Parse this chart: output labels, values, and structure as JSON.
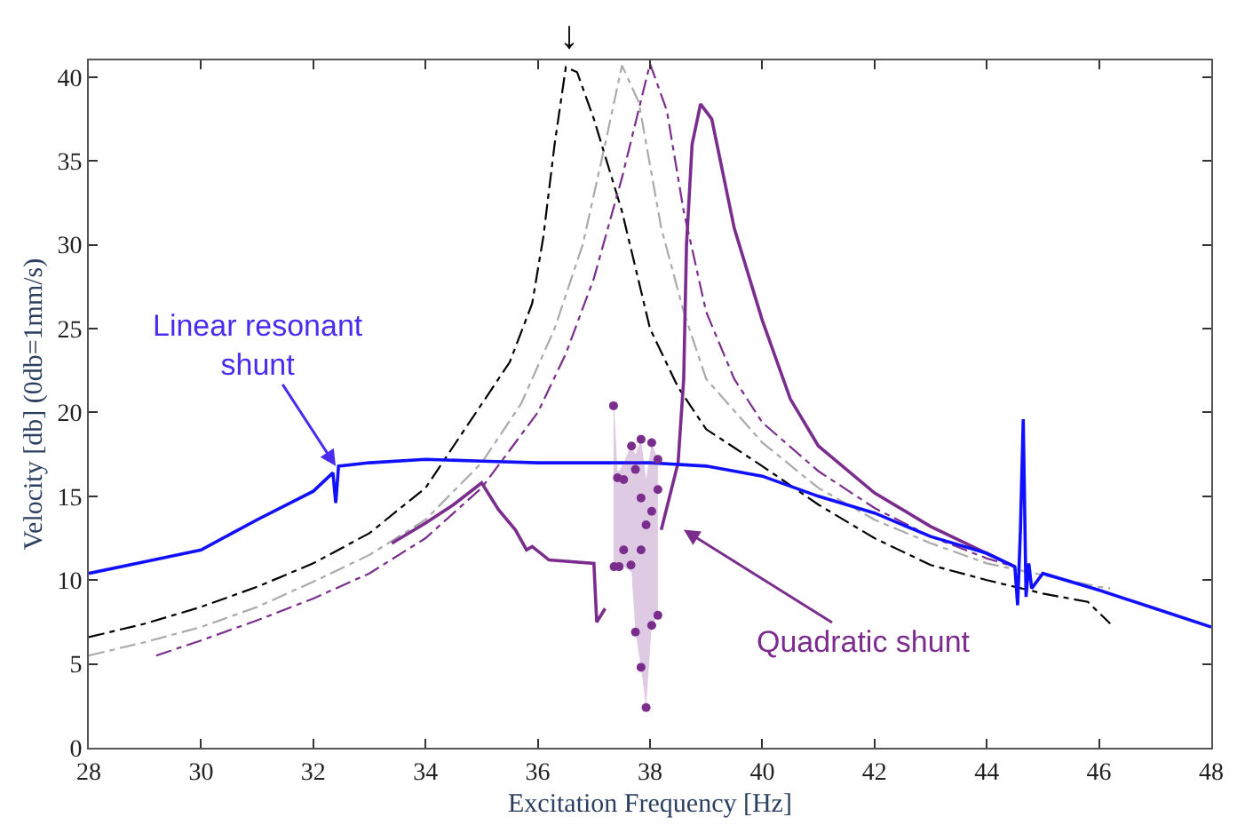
{
  "chart_data": {
    "type": "line",
    "xlabel": "Excitation Frequency [Hz]",
    "ylabel": "Velocity [db] (0db=1mm/s)",
    "xlim": [
      28,
      48
    ],
    "xticks": [
      28,
      30,
      32,
      34,
      36,
      38,
      40,
      42,
      44,
      46,
      48
    ],
    "ylim": [
      0,
      41
    ],
    "yticks": [
      0,
      5,
      10,
      15,
      20,
      25,
      30,
      35,
      40
    ],
    "series": [
      {
        "color": "#000000",
        "line_style": "dashdot",
        "x": [
          28,
          29,
          30,
          31,
          32,
          33,
          34,
          34.6,
          35,
          35.5,
          35.9,
          36.1,
          36.3,
          36.5,
          36.7,
          37,
          37.5,
          38,
          38.5,
          39,
          40,
          41,
          42,
          43,
          44,
          45,
          45.8,
          46.2
        ],
        "values": [
          6.6,
          7.4,
          8.4,
          9.6,
          11,
          12.8,
          15.5,
          18.5,
          20.5,
          23,
          26.5,
          30.5,
          36,
          40.6,
          40.3,
          37.5,
          32,
          25,
          21.5,
          19,
          16.8,
          14.5,
          12.5,
          10.9,
          10,
          9.2,
          8.7,
          7.4
        ]
      },
      {
        "color": "#aaaaaa",
        "line_style": "dashdot",
        "x": [
          28,
          29,
          30,
          31,
          32,
          33,
          34,
          35,
          35.7,
          36.3,
          36.8,
          37.2,
          37.5,
          37.8,
          38.2,
          38.6,
          39,
          40,
          41,
          42,
          43,
          44,
          45,
          46,
          46.2
        ],
        "values": [
          5.5,
          6.3,
          7.2,
          8.4,
          9.9,
          11.5,
          13.6,
          17,
          20.5,
          25,
          30,
          36,
          40.7,
          38.5,
          31,
          26,
          22,
          18.2,
          15.5,
          13.6,
          12.2,
          11,
          10.3,
          9.6,
          9.5
        ]
      },
      {
        "color": "#7b2d8e",
        "line_style": "dashdot",
        "x": [
          29.2,
          30,
          31,
          32,
          33,
          34,
          35,
          36,
          36.5,
          37,
          37.5,
          38,
          38.3,
          38.6,
          39,
          39.5,
          40,
          41,
          42,
          43,
          44,
          44.5
        ],
        "values": [
          5.5,
          6.4,
          7.6,
          8.9,
          10.4,
          12.5,
          15.5,
          20,
          23.5,
          28,
          34,
          40.8,
          38,
          32,
          26,
          22,
          19.4,
          16.5,
          14.3,
          12.6,
          11.3,
          10.8
        ]
      },
      {
        "color": "#7b2d8e",
        "line_style": "solid",
        "x": [
          33.4,
          34,
          34.5,
          35,
          35.3,
          35.6,
          35.8,
          35.9,
          36.2,
          37,
          37.05,
          37.2,
          37.3,
          38.2,
          38.5,
          38.6,
          38.65,
          38.75,
          38.9,
          39.1,
          39.5,
          40,
          40.5,
          41,
          42,
          43,
          44,
          44.5
        ],
        "values": [
          12.2,
          13.4,
          14.5,
          15.8,
          14.2,
          13,
          11.8,
          12,
          11.2,
          11,
          7.5,
          8.3,
          null,
          13,
          17,
          22,
          30,
          36,
          38.4,
          37.5,
          31,
          25.5,
          20.8,
          18,
          15.2,
          13.2,
          11.6,
          10.8
        ]
      },
      {
        "color": "#1010ff",
        "line_style": "solid",
        "x": [
          28,
          29,
          30,
          31,
          32,
          32.35,
          32.4,
          32.45,
          33,
          34,
          35,
          36,
          37,
          38,
          39,
          40,
          41,
          42,
          43,
          44,
          44.5,
          44.55,
          44.6,
          44.65,
          44.7,
          44.75,
          44.8,
          45,
          46,
          47,
          48
        ],
        "values": [
          10.4,
          11.1,
          11.8,
          13.6,
          15.3,
          16.4,
          14.6,
          16.8,
          17,
          17.2,
          17.1,
          17,
          17,
          17,
          16.8,
          16.2,
          15,
          14,
          12.6,
          11.6,
          10.8,
          8.5,
          13,
          19.6,
          9,
          11,
          9.5,
          10.4,
          9.4,
          8.3,
          7.2
        ]
      },
      {
        "type": "scatter",
        "color": "#7b2d8e",
        "marker": "circle",
        "x": [
          37.35,
          37.36,
          37.42,
          37.45,
          37.53,
          37.53,
          37.66,
          37.67,
          37.74,
          37.74,
          37.84,
          37.84,
          37.84,
          37.84,
          37.93,
          37.93,
          38.03,
          38.03,
          38.03,
          38.14,
          38.14,
          38.14
        ],
        "values": [
          20.4,
          10.8,
          16.1,
          10.8,
          16.0,
          11.8,
          10.9,
          18.0,
          16.6,
          6.9,
          18.4,
          14.9,
          11.8,
          4.8,
          13.3,
          2.4,
          18.2,
          14.1,
          7.3,
          17.2,
          15.4,
          7.9
        ],
        "upper": [
          20.4,
          20.4,
          16.5,
          16.5,
          17,
          17,
          18,
          18,
          17.5,
          17.5,
          18.4,
          18.4,
          18.4,
          18.4,
          16,
          16,
          18.2,
          18.2,
          18.2,
          17.2,
          17.2,
          17.2
        ],
        "lower": [
          10.8,
          10.8,
          10.8,
          10.8,
          10.8,
          10.8,
          10.5,
          10.5,
          6.9,
          6.9,
          4.8,
          4.8,
          4.8,
          4.8,
          2.4,
          2.4,
          7.3,
          7.3,
          7.3,
          7.9,
          7.9,
          7.9
        ]
      }
    ],
    "annotations": [
      {
        "text": "Linear resonant\nshunt",
        "x": 32.4,
        "y": 16.8
      },
      "Quadratic shunt",
      {
        "text": "↓",
        "x": 36.55,
        "y": 41
      }
    ]
  }
}
